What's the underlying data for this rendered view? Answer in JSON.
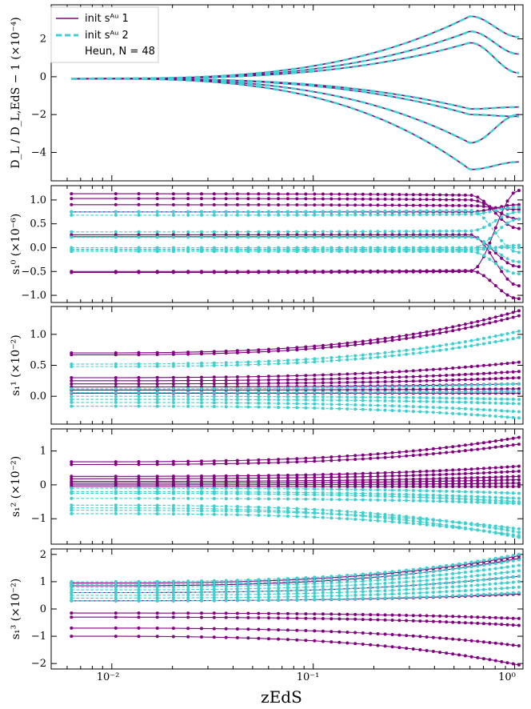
{
  "colors": {
    "series1": "#800080",
    "series2": "#40cfcf"
  },
  "legend": {
    "entry1": "init sᴬᵘ 1",
    "entry2": "init sᴬᵘ 2",
    "entry3": "Heun, N = 48"
  },
  "xlabel": "zEdS",
  "x_tick_labels": [
    "10⁻²",
    "10⁻¹",
    "10⁰"
  ],
  "chart_data": [
    {
      "type": "line",
      "panel": "luminosity-distance",
      "ylabel": "D_L / D_L,EdS − 1 (×10⁻⁴)",
      "x_scale": "log",
      "xlim": [
        0.005,
        1.1
      ],
      "ylim": [
        -5.5,
        3.8
      ],
      "yticks": [
        -4,
        -2,
        0,
        2
      ],
      "ytick_labels": [
        "−4",
        "−2",
        "0",
        "2"
      ],
      "series": [
        {
          "name": "init s_A^μ 1",
          "curves": [
            [
              -0.1,
              3.2,
              2.1
            ],
            [
              -0.1,
              2.4,
              1.2
            ],
            [
              -0.1,
              1.8,
              0.2
            ],
            [
              -0.1,
              -1.7,
              -1.6
            ],
            [
              -0.1,
              -3.5,
              -2.0
            ],
            [
              -0.1,
              -2.0,
              -2.1
            ],
            [
              -0.1,
              -4.9,
              -4.5
            ]
          ]
        },
        {
          "name": "init s_A^μ 2",
          "curves": [
            [
              -0.1,
              3.2,
              2.1
            ],
            [
              -0.1,
              2.4,
              1.2
            ],
            [
              -0.1,
              1.8,
              0.2
            ],
            [
              -0.1,
              -1.7,
              -1.6
            ],
            [
              -0.1,
              -3.5,
              -2.0
            ],
            [
              -0.1,
              -2.0,
              -2.1
            ],
            [
              -0.1,
              -4.9,
              -4.5
            ]
          ]
        }
      ]
    },
    {
      "type": "scatter",
      "panel": "s1-0",
      "ylabel": "s₁⁰ (×10⁻⁶)",
      "x_scale": "log",
      "xlim": [
        0.005,
        1.1
      ],
      "ylim": [
        -1.15,
        1.3
      ],
      "yticks": [
        -1.0,
        -0.5,
        0.0,
        0.5,
        1.0
      ],
      "ytick_labels": [
        "−1.0",
        "−0.5",
        "0.0",
        "0.5",
        "1.0"
      ],
      "series": [
        {
          "name": "init s_A^μ 1",
          "curves": [
            [
              1.13,
              1.1,
              0.4
            ],
            [
              1.03,
              1.0,
              0.6
            ],
            [
              0.9,
              0.88,
              0.8
            ],
            [
              0.75,
              0.75,
              0.9
            ],
            [
              0.27,
              0.27,
              -0.8
            ],
            [
              0.23,
              0.23,
              -0.4
            ],
            [
              -0.5,
              -0.48,
              -1.07
            ],
            [
              -0.52,
              -0.5,
              1.2
            ]
          ]
        },
        {
          "name": "init s_A^μ 2",
          "curves": [
            [
              0.68,
              0.7,
              0.85
            ],
            [
              0.33,
              0.35,
              0.75
            ],
            [
              0.22,
              0.22,
              -0.3
            ],
            [
              0.0,
              0.0,
              0.0
            ],
            [
              -0.05,
              -0.05,
              0.05
            ],
            [
              -0.08,
              -0.08,
              -0.55
            ],
            [
              0.75,
              0.78,
              -0.1
            ],
            [
              -0.03,
              -0.03,
              0.6
            ]
          ]
        }
      ]
    },
    {
      "type": "scatter",
      "panel": "s1-1",
      "ylabel": "s₁¹ (×10⁻²)",
      "x_scale": "log",
      "xlim": [
        0.005,
        1.1
      ],
      "ylim": [
        -0.45,
        1.45
      ],
      "yticks": [
        0.0,
        0.5,
        1.0
      ],
      "ytick_labels": [
        "0.0",
        "0.5",
        "1.0"
      ],
      "series": [
        {
          "name": "init s_A^μ 1",
          "curves": [
            [
              0.7,
              1.38
            ],
            [
              0.3,
              0.55
            ],
            [
              0.25,
              0.4
            ],
            [
              0.2,
              0.3
            ],
            [
              0.15,
              0.2
            ],
            [
              0.1,
              0.12
            ],
            [
              0.05,
              0.05
            ],
            [
              0.67,
              1.3
            ]
          ]
        },
        {
          "name": "init s_A^μ 2",
          "curves": [
            [
              0.52,
              1.05
            ],
            [
              0.48,
              0.95
            ],
            [
              0.12,
              0.2
            ],
            [
              0.06,
              0.08
            ],
            [
              0.0,
              -0.05
            ],
            [
              -0.05,
              -0.12
            ],
            [
              -0.1,
              -0.25
            ],
            [
              -0.16,
              -0.35
            ]
          ]
        }
      ]
    },
    {
      "type": "scatter",
      "panel": "s1-2",
      "ylabel": "s₁² (×10⁻²)",
      "x_scale": "log",
      "xlim": [
        0.005,
        1.1
      ],
      "ylim": [
        -1.75,
        1.65
      ],
      "yticks": [
        -1,
        0,
        1
      ],
      "ytick_labels": [
        "−1",
        "0",
        "1"
      ],
      "series": [
        {
          "name": "init s_A^μ 1",
          "curves": [
            [
              0.68,
              1.4
            ],
            [
              0.6,
              1.2
            ],
            [
              0.25,
              0.55
            ],
            [
              0.18,
              0.4
            ],
            [
              0.1,
              0.25
            ],
            [
              0.05,
              0.15
            ],
            [
              -0.05,
              -0.05
            ],
            [
              0.0,
              0.05
            ]
          ]
        },
        {
          "name": "init s_A^μ 2",
          "curves": [
            [
              -0.6,
              -1.4
            ],
            [
              -0.68,
              -1.55
            ],
            [
              -0.75,
              -1.3
            ],
            [
              -0.85,
              -1.5
            ],
            [
              -0.1,
              -0.25
            ],
            [
              -0.2,
              -0.4
            ],
            [
              -0.25,
              -0.5
            ],
            [
              -0.4,
              -0.55
            ]
          ]
        }
      ]
    },
    {
      "type": "scatter",
      "panel": "s1-3",
      "ylabel": "s₁³ (×10⁻²)",
      "x_scale": "log",
      "xlim": [
        0.005,
        1.1
      ],
      "ylim": [
        -2.2,
        2.2
      ],
      "yticks": [
        -2,
        -1,
        0,
        1,
        2
      ],
      "ytick_labels": [
        "−2",
        "−1",
        "0",
        "1",
        "2"
      ],
      "series": [
        {
          "name": "init s_A^μ 1",
          "curves": [
            [
              0.95,
              1.95
            ],
            [
              0.85,
              1.85
            ],
            [
              0.6,
              1.2
            ],
            [
              0.3,
              0.55
            ],
            [
              -0.15,
              -0.35
            ],
            [
              -0.3,
              -0.6
            ],
            [
              -0.7,
              -1.35
            ],
            [
              -1.0,
              -2.05
            ]
          ]
        },
        {
          "name": "init s_A^μ 2",
          "curves": [
            [
              1.0,
              2.0
            ],
            [
              0.9,
              1.8
            ],
            [
              0.8,
              1.6
            ],
            [
              0.7,
              1.4
            ],
            [
              0.6,
              1.2
            ],
            [
              0.5,
              1.0
            ],
            [
              0.4,
              0.8
            ],
            [
              0.3,
              0.6
            ]
          ]
        }
      ]
    }
  ]
}
